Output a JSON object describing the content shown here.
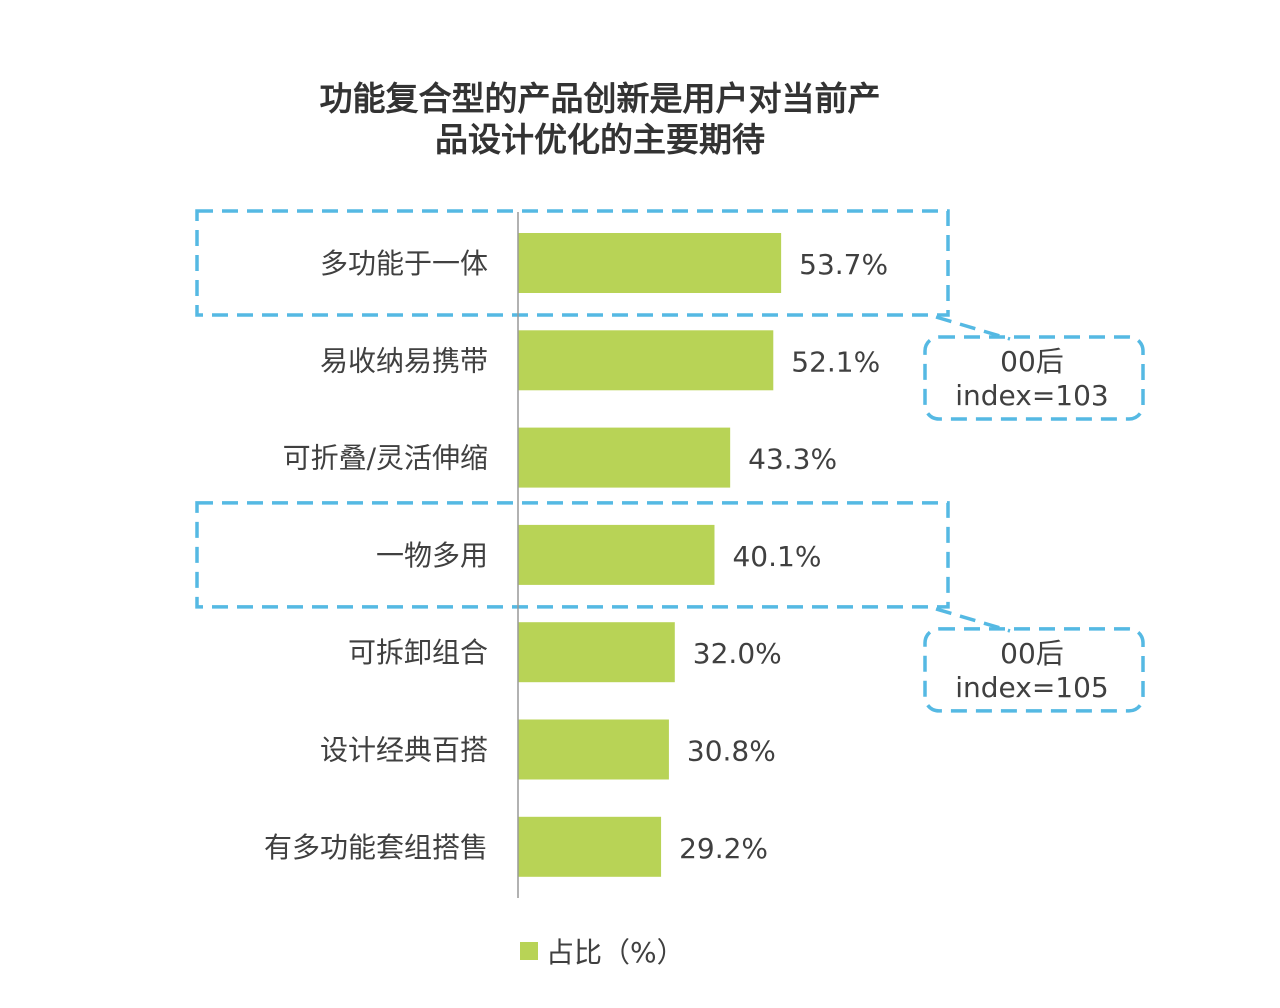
{
  "chart_data": {
    "type": "bar",
    "orientation": "horizontal",
    "title_lines": [
      "功能复合型的产品创新是用户对当前产",
      "品设计优化的主要期待"
    ],
    "categories": [
      "多功能于一体",
      "易收纳易携带",
      "可折叠/灵活伸缩",
      "一物多用",
      "可拆卸组合",
      "设计经典百搭",
      "有多功能套组搭售"
    ],
    "series": [
      {
        "name": "占比（%）",
        "values": [
          53.7,
          52.1,
          43.3,
          40.1,
          32.0,
          30.8,
          29.2
        ],
        "value_labels": [
          "53.7%",
          "52.1%",
          "43.3%",
          "40.1%",
          "32.0%",
          "30.8%",
          "29.2%"
        ]
      }
    ],
    "xlim": [
      0,
      100
    ],
    "grid": false,
    "legend_position": "bottom",
    "highlights": [
      {
        "category": "多功能于一体",
        "callout_lines": [
          "00后",
          "index=103"
        ]
      },
      {
        "category": "一物多用",
        "callout_lines": [
          "00后",
          "index=105"
        ]
      }
    ]
  },
  "colors": {
    "bar": "#b8d356",
    "highlight": "#55b9e3",
    "axis": "#999999",
    "text": "#404040"
  }
}
